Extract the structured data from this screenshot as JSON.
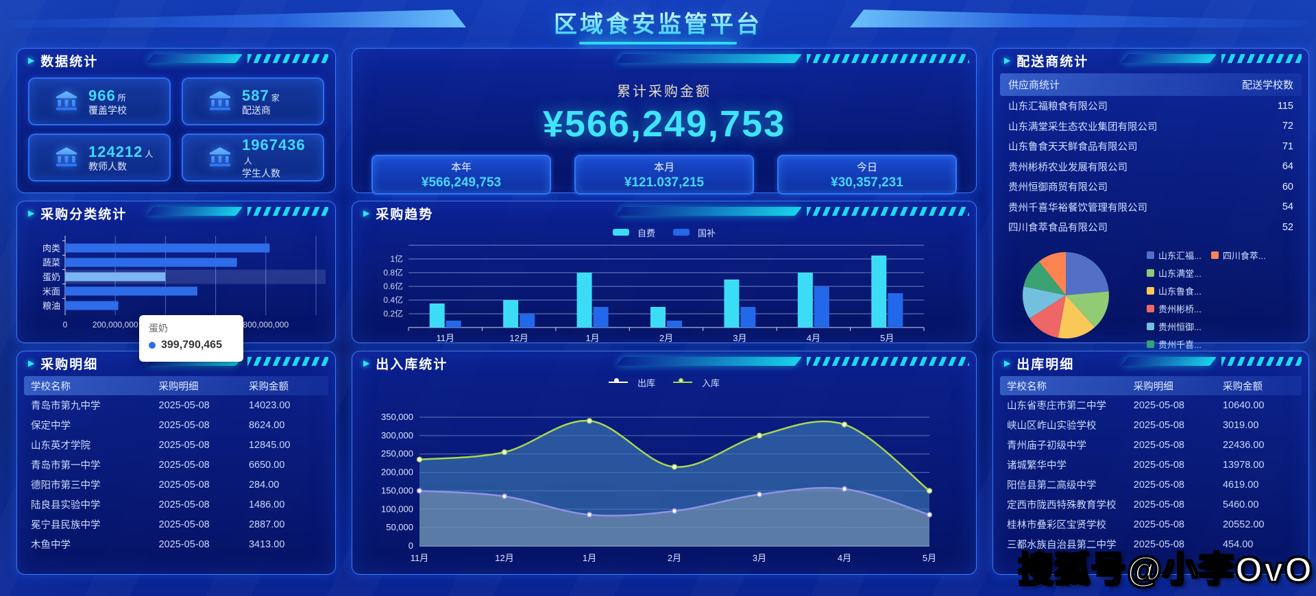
{
  "header": {
    "title": "区域食安监管平台"
  },
  "watermark": "搜狐号@小李OvO",
  "stats": {
    "title": "数据统计",
    "cards": [
      {
        "value": "966",
        "unit": "所",
        "label": "覆盖学校"
      },
      {
        "value": "587",
        "unit": "家",
        "label": "配送商"
      },
      {
        "value": "124212",
        "unit": "人",
        "label": "教师人数"
      },
      {
        "value": "1967436",
        "unit": "人",
        "label": "学生人数"
      }
    ]
  },
  "summary": {
    "label": "累计采购金额",
    "amount": "¥566,249,753",
    "cards": [
      {
        "label": "本年",
        "value": "¥566,249,753"
      },
      {
        "label": "本月",
        "value": "¥121.037,215"
      },
      {
        "label": "今日",
        "value": "¥30,357,231"
      }
    ]
  },
  "suppliers": {
    "title": "配送商统计",
    "col_name": "供应商统计",
    "col_count": "配送学校数",
    "rows": [
      {
        "name": "山东汇福粮食有限公司",
        "count": "115"
      },
      {
        "name": "山东满堂采生态农业集团有限公司",
        "count": "72"
      },
      {
        "name": "山东鲁食天天鲜食品有限公司",
        "count": "71"
      },
      {
        "name": "贵州彬桥农业发展有限公司",
        "count": "64"
      },
      {
        "name": "贵州恒御商贸有限公司",
        "count": "60"
      },
      {
        "name": "贵州千喜华裕餐饮管理有限公司",
        "count": "54"
      },
      {
        "name": "四川食萃食品有限公司",
        "count": "52"
      }
    ],
    "legend": [
      {
        "label": "山东汇福...",
        "color": "#5470c6"
      },
      {
        "label": "山东满堂...",
        "color": "#91cc75"
      },
      {
        "label": "山东鲁食...",
        "color": "#fac858"
      },
      {
        "label": "贵州彬桥...",
        "color": "#ee6666"
      },
      {
        "label": "贵州恒御...",
        "color": "#73c0de"
      },
      {
        "label": "贵州千喜...",
        "color": "#3ba272"
      },
      {
        "label": "四川食萃...",
        "color": "#fc8452"
      }
    ]
  },
  "category": {
    "title": "采购分类统计",
    "tooltip": {
      "name": "蛋奶",
      "value": "399,790,465"
    }
  },
  "trend": {
    "title": "采购趋势"
  },
  "inout": {
    "title": "出入库统计"
  },
  "purchase_detail": {
    "title": "采购明细",
    "headers": [
      "学校名称",
      "采购明细",
      "采购金额"
    ],
    "rows": [
      [
        "青岛市第九中学",
        "2025-05-08",
        "14023.00"
      ],
      [
        "保定中学",
        "2025-05-08",
        "8624.00"
      ],
      [
        "山东英才学院",
        "2025-05-08",
        "12845.00"
      ],
      [
        "青岛市第一中学",
        "2025-05-08",
        "6650.00"
      ],
      [
        "德阳市第三中学",
        "2025-05-08",
        "284.00"
      ],
      [
        "陆良县实验中学",
        "2025-05-08",
        "1486.00"
      ],
      [
        "冕宁县民族中学",
        "2025-05-08",
        "2887.00"
      ],
      [
        "木鱼中学",
        "2025-05-08",
        "3413.00"
      ]
    ]
  },
  "outbound_detail": {
    "title": "出库明细",
    "headers": [
      "学校名称",
      "采购明细",
      "采购金额"
    ],
    "rows": [
      [
        "山东省枣庄市第二中学",
        "2025-05-08",
        "10640.00"
      ],
      [
        "峡山区岞山实验学校",
        "2025-05-08",
        "3019.00"
      ],
      [
        "青州庙子初级中学",
        "2025-05-08",
        "22436.00"
      ],
      [
        "诸城繁华中学",
        "2025-05-08",
        "13978.00"
      ],
      [
        "阳信县第二高级中学",
        "2025-05-08",
        "4619.00"
      ],
      [
        "定西市陇西特殊教育学校",
        "2025-05-08",
        "5460.00"
      ],
      [
        "桂林市叠彩区宝贤学校",
        "2025-05-08",
        "20552.00"
      ],
      [
        "三都水族自治县第二中学",
        "2025-05-08",
        "454.00"
      ]
    ]
  },
  "chart_data": [
    {
      "id": "category_bar",
      "type": "bar",
      "orientation": "horizontal",
      "title": "采购分类统计",
      "categories": [
        "肉类",
        "蔬菜",
        "蛋奶",
        "米面",
        "粮油"
      ],
      "values": [
        815000000,
        685000000,
        399790465,
        527000000,
        212000000
      ],
      "highlight_index": 2,
      "xlim": [
        0,
        1000000000
      ],
      "xticks": [
        0,
        200000000,
        400000000,
        600000000,
        800000000
      ],
      "bar_color": "#2e6ce8",
      "highlight_color": "#7db4f2",
      "grid": true
    },
    {
      "id": "trend_bar",
      "type": "bar",
      "title": "采购趋势",
      "categories": [
        "11月",
        "12月",
        "1月",
        "2月",
        "3月",
        "4月",
        "5月"
      ],
      "unit": "亿",
      "ylim": [
        0,
        1.2
      ],
      "yticks": [
        "0.2亿",
        "0.4亿",
        "0.6亿",
        "0.8亿",
        "1亿"
      ],
      "grid": true,
      "legend_position": "top",
      "series": [
        {
          "name": "自费",
          "color": "#3cdcf7",
          "values": [
            0.35,
            0.4,
            0.8,
            0.3,
            0.7,
            0.8,
            1.05
          ]
        },
        {
          "name": "国补",
          "color": "#2368e8",
          "values": [
            0.1,
            0.2,
            0.3,
            0.1,
            0.3,
            0.6,
            0.5
          ]
        }
      ]
    },
    {
      "id": "inout_line",
      "type": "line",
      "title": "出入库统计",
      "x": [
        "11月",
        "12月",
        "1月",
        "2月",
        "3月",
        "4月",
        "5月"
      ],
      "ylim": [
        0,
        350000
      ],
      "ytick_step": 50000,
      "grid": true,
      "legend_position": "top",
      "series": [
        {
          "name": "出库",
          "color": "#8d93e8",
          "legend_color": "#ffffff",
          "area": "rgba(150,170,182,0.45)",
          "values": [
            150000,
            135000,
            85000,
            95000,
            140000,
            155000,
            85000
          ]
        },
        {
          "name": "入库",
          "color": "#a8d84f",
          "legend_color": "#a8d84f",
          "area": "rgba(62,122,180,0.62)",
          "values": [
            235000,
            255000,
            340000,
            215000,
            300000,
            330000,
            150000
          ]
        }
      ]
    },
    {
      "id": "supplier_pie",
      "type": "pie",
      "title": "配送商统计",
      "labels": [
        "山东汇福粮食有限公司",
        "山东满堂采生态农业集团有限公司",
        "山东鲁食天天鲜食品有限公司",
        "贵州彬桥农业发展有限公司",
        "贵州恒御商贸有限公司",
        "贵州千喜华裕餐饮管理有限公司",
        "四川食萃食品有限公司"
      ],
      "values": [
        115,
        72,
        71,
        64,
        60,
        54,
        52
      ],
      "colors": [
        "#5470c6",
        "#91cc75",
        "#fac858",
        "#ee6666",
        "#73c0de",
        "#3ba272",
        "#fc8452"
      ],
      "legend_position": "right"
    }
  ]
}
